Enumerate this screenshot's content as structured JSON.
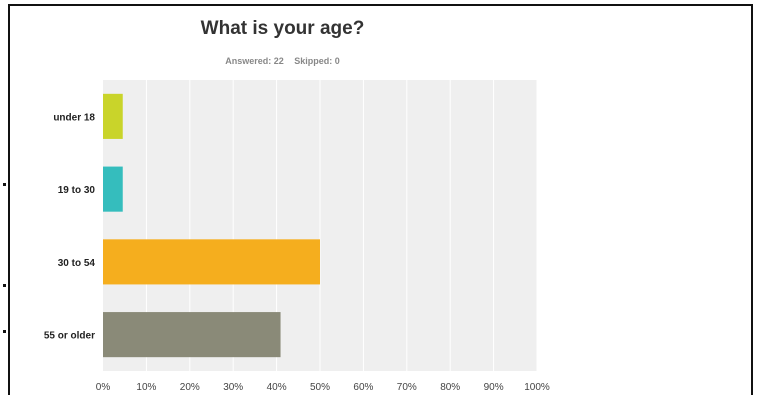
{
  "chart_data": {
    "type": "bar",
    "orientation": "horizontal",
    "title": "What is your age?",
    "answered_label": "Answered: 22",
    "skipped_label": "Skipped: 0",
    "categories": [
      "under 18",
      "19 to 30",
      "30 to 54",
      "55 or older"
    ],
    "values": [
      4.55,
      4.55,
      50.0,
      40.91
    ],
    "colors": [
      "#c9d42a",
      "#35bdbd",
      "#f5ae1e",
      "#8a8a78"
    ],
    "xlim": [
      0,
      100
    ],
    "xticks": [
      "0%",
      "10%",
      "20%",
      "30%",
      "40%",
      "50%",
      "60%",
      "70%",
      "80%",
      "90%",
      "100%"
    ],
    "grid": true,
    "legend": "none"
  },
  "colors": {
    "plot_background": "#efefef",
    "gridline": "#ffffff"
  }
}
